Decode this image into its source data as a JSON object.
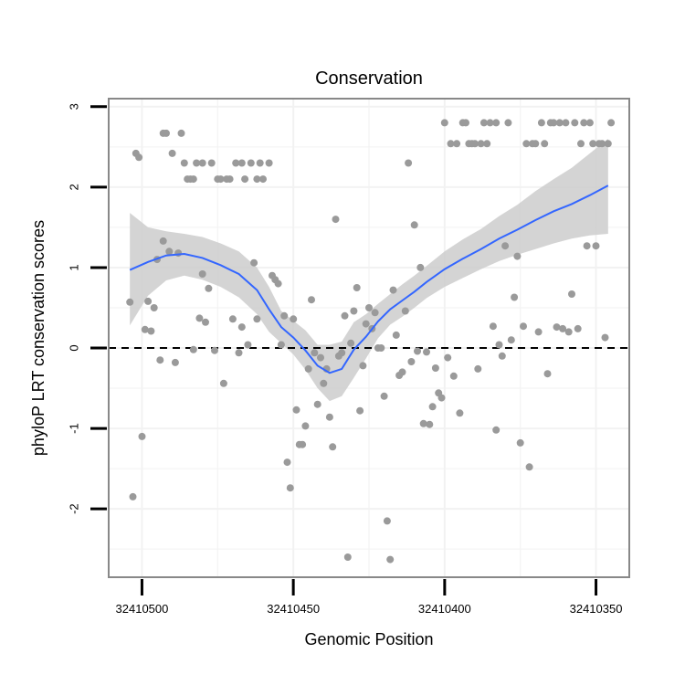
{
  "chart_data": {
    "type": "scatter",
    "title": "Conservation",
    "xlabel": "Genomic Position",
    "ylabel": "phyloP LRT conservation scores",
    "x_reversed": true,
    "xlim": [
      32410511,
      32410339
    ],
    "ylim": [
      -2.85,
      3.1
    ],
    "x_ticks": [
      32410500,
      32410450,
      32410400,
      32410350
    ],
    "x_tick_labels": [
      "32410500",
      "32410450",
      "32410400",
      "32410350"
    ],
    "y_ticks": [
      -2,
      -1,
      0,
      1,
      2,
      3
    ],
    "y_tick_labels": [
      "-2",
      "-1",
      "0",
      "1",
      "2",
      "3"
    ],
    "grid": true,
    "reference_line": {
      "y": 0,
      "style": "dashed"
    },
    "colors": {
      "points": "#9a9a9a",
      "smooth_line": "#3366ff",
      "confidence_band": "#cccccc",
      "panel_border": "#888888",
      "grid": "#f2f2f2"
    },
    "points": [
      {
        "x": 32410504,
        "y": 0.57
      },
      {
        "x": 32410503,
        "y": -1.85
      },
      {
        "x": 32410502,
        "y": 2.42
      },
      {
        "x": 32410501,
        "y": 2.37
      },
      {
        "x": 32410500,
        "y": -1.1
      },
      {
        "x": 32410499,
        "y": 0.23
      },
      {
        "x": 32410498,
        "y": 0.58
      },
      {
        "x": 32410497,
        "y": 0.21
      },
      {
        "x": 32410496,
        "y": 0.5
      },
      {
        "x": 32410495,
        "y": 1.1
      },
      {
        "x": 32410494,
        "y": -0.15
      },
      {
        "x": 32410493,
        "y": 2.67
      },
      {
        "x": 32410493,
        "y": 1.33
      },
      {
        "x": 32410492,
        "y": 2.67
      },
      {
        "x": 32410491,
        "y": 1.2
      },
      {
        "x": 32410490,
        "y": 2.42
      },
      {
        "x": 32410489,
        "y": -0.18
      },
      {
        "x": 32410488,
        "y": 1.18
      },
      {
        "x": 32410487,
        "y": 2.67
      },
      {
        "x": 32410486,
        "y": 2.3
      },
      {
        "x": 32410485,
        "y": 2.1
      },
      {
        "x": 32410484,
        "y": 2.1
      },
      {
        "x": 32410483,
        "y": -0.02
      },
      {
        "x": 32410483,
        "y": 2.1
      },
      {
        "x": 32410482,
        "y": 2.3
      },
      {
        "x": 32410481,
        "y": 0.37
      },
      {
        "x": 32410480,
        "y": 0.92
      },
      {
        "x": 32410480,
        "y": 2.3
      },
      {
        "x": 32410479,
        "y": 0.32
      },
      {
        "x": 32410478,
        "y": 0.74
      },
      {
        "x": 32410477,
        "y": 2.3
      },
      {
        "x": 32410476,
        "y": -0.03
      },
      {
        "x": 32410475,
        "y": 2.1
      },
      {
        "x": 32410474,
        "y": 2.1
      },
      {
        "x": 32410473,
        "y": -0.44
      },
      {
        "x": 32410472,
        "y": 2.1
      },
      {
        "x": 32410471,
        "y": 2.1
      },
      {
        "x": 32410470,
        "y": 0.36
      },
      {
        "x": 32410469,
        "y": 2.3
      },
      {
        "x": 32410468,
        "y": -0.06
      },
      {
        "x": 32410467,
        "y": 2.3
      },
      {
        "x": 32410467,
        "y": 0.26
      },
      {
        "x": 32410466,
        "y": 2.1
      },
      {
        "x": 32410465,
        "y": 0.04
      },
      {
        "x": 32410464,
        "y": 2.3
      },
      {
        "x": 32410463,
        "y": 1.06
      },
      {
        "x": 32410462,
        "y": 2.1
      },
      {
        "x": 32410462,
        "y": 0.36
      },
      {
        "x": 32410461,
        "y": 2.3
      },
      {
        "x": 32410460,
        "y": 2.1
      },
      {
        "x": 32410458,
        "y": 2.3
      },
      {
        "x": 32410457,
        "y": 0.9
      },
      {
        "x": 32410456,
        "y": 0.85
      },
      {
        "x": 32410455,
        "y": 0.8
      },
      {
        "x": 32410454,
        "y": 0.04
      },
      {
        "x": 32410453,
        "y": 0.4
      },
      {
        "x": 32410452,
        "y": -1.42
      },
      {
        "x": 32410451,
        "y": -1.74
      },
      {
        "x": 32410450,
        "y": 0.36
      },
      {
        "x": 32410449,
        "y": -0.77
      },
      {
        "x": 32410448,
        "y": -1.2
      },
      {
        "x": 32410447,
        "y": -1.2
      },
      {
        "x": 32410446,
        "y": -0.97
      },
      {
        "x": 32410445,
        "y": -0.26
      },
      {
        "x": 32410444,
        "y": 0.6
      },
      {
        "x": 32410443,
        "y": -0.06
      },
      {
        "x": 32410442,
        "y": -0.7
      },
      {
        "x": 32410441,
        "y": -0.12
      },
      {
        "x": 32410440,
        "y": -0.44
      },
      {
        "x": 32410439,
        "y": -0.26
      },
      {
        "x": 32410438,
        "y": -0.86
      },
      {
        "x": 32410437,
        "y": -1.23
      },
      {
        "x": 32410436,
        "y": 1.6
      },
      {
        "x": 32410435,
        "y": -0.1
      },
      {
        "x": 32410434,
        "y": -0.06
      },
      {
        "x": 32410433,
        "y": 0.4
      },
      {
        "x": 32410432,
        "y": -2.6
      },
      {
        "x": 32410431,
        "y": 0.06
      },
      {
        "x": 32410430,
        "y": 0.46
      },
      {
        "x": 32410429,
        "y": 0.75
      },
      {
        "x": 32410428,
        "y": -0.78
      },
      {
        "x": 32410427,
        "y": -0.22
      },
      {
        "x": 32410426,
        "y": 0.3
      },
      {
        "x": 32410425,
        "y": 0.5
      },
      {
        "x": 32410424,
        "y": 0.24
      },
      {
        "x": 32410423,
        "y": 0.44
      },
      {
        "x": 32410422,
        "y": 0
      },
      {
        "x": 32410421,
        "y": 0
      },
      {
        "x": 32410420,
        "y": -0.6
      },
      {
        "x": 32410419,
        "y": -2.15
      },
      {
        "x": 32410418,
        "y": -2.63
      },
      {
        "x": 32410417,
        "y": 0.72
      },
      {
        "x": 32410416,
        "y": 0.16
      },
      {
        "x": 32410415,
        "y": -0.34
      },
      {
        "x": 32410414,
        "y": -0.3
      },
      {
        "x": 32410413,
        "y": 0.46
      },
      {
        "x": 32410412,
        "y": 2.3
      },
      {
        "x": 32410411,
        "y": -0.17
      },
      {
        "x": 32410410,
        "y": 1.53
      },
      {
        "x": 32410409,
        "y": -0.04
      },
      {
        "x": 32410408,
        "y": 1
      },
      {
        "x": 32410407,
        "y": -0.94
      },
      {
        "x": 32410406,
        "y": -0.05
      },
      {
        "x": 32410405,
        "y": -0.95
      },
      {
        "x": 32410404,
        "y": -0.73
      },
      {
        "x": 32410403,
        "y": -0.25
      },
      {
        "x": 32410402,
        "y": -0.56
      },
      {
        "x": 32410401,
        "y": -0.62
      },
      {
        "x": 32410400,
        "y": 2.8
      },
      {
        "x": 32410399,
        "y": -0.12
      },
      {
        "x": 32410398,
        "y": 2.54
      },
      {
        "x": 32410397,
        "y": -0.35
      },
      {
        "x": 32410396,
        "y": 2.54
      },
      {
        "x": 32410395,
        "y": -0.81
      },
      {
        "x": 32410394,
        "y": 2.8
      },
      {
        "x": 32410393,
        "y": 2.8
      },
      {
        "x": 32410392,
        "y": 2.54
      },
      {
        "x": 32410391,
        "y": 2.54
      },
      {
        "x": 32410390,
        "y": 2.54
      },
      {
        "x": 32410389,
        "y": -0.26
      },
      {
        "x": 32410388,
        "y": 2.54
      },
      {
        "x": 32410387,
        "y": 2.8
      },
      {
        "x": 32410386,
        "y": 2.54
      },
      {
        "x": 32410385,
        "y": 2.8
      },
      {
        "x": 32410384,
        "y": 0.27
      },
      {
        "x": 32410383,
        "y": -1.02
      },
      {
        "x": 32410383,
        "y": 2.8
      },
      {
        "x": 32410382,
        "y": 0.04
      },
      {
        "x": 32410381,
        "y": -0.1
      },
      {
        "x": 32410380,
        "y": 1.27
      },
      {
        "x": 32410379,
        "y": 2.8
      },
      {
        "x": 32410378,
        "y": 0.1
      },
      {
        "x": 32410377,
        "y": 0.63
      },
      {
        "x": 32410376,
        "y": 1.14
      },
      {
        "x": 32410375,
        "y": -1.18
      },
      {
        "x": 32410374,
        "y": 0.27
      },
      {
        "x": 32410373,
        "y": 2.54
      },
      {
        "x": 32410372,
        "y": -1.48
      },
      {
        "x": 32410371,
        "y": 2.54
      },
      {
        "x": 32410370,
        "y": 2.54
      },
      {
        "x": 32410369,
        "y": 0.2
      },
      {
        "x": 32410368,
        "y": 2.8
      },
      {
        "x": 32410367,
        "y": 2.54
      },
      {
        "x": 32410366,
        "y": -0.32
      },
      {
        "x": 32410365,
        "y": 2.8
      },
      {
        "x": 32410364,
        "y": 2.8
      },
      {
        "x": 32410363,
        "y": 0.26
      },
      {
        "x": 32410362,
        "y": 2.8
      },
      {
        "x": 32410361,
        "y": 0.24
      },
      {
        "x": 32410360,
        "y": 2.8
      },
      {
        "x": 32410359,
        "y": 0.2
      },
      {
        "x": 32410358,
        "y": 0.67
      },
      {
        "x": 32410357,
        "y": 2.8
      },
      {
        "x": 32410356,
        "y": 0.24
      },
      {
        "x": 32410355,
        "y": 2.54
      },
      {
        "x": 32410354,
        "y": 2.8
      },
      {
        "x": 32410353,
        "y": 1.27
      },
      {
        "x": 32410352,
        "y": 2.8
      },
      {
        "x": 32410351,
        "y": 2.54
      },
      {
        "x": 32410350,
        "y": 1.27
      },
      {
        "x": 32410349,
        "y": 2.54
      },
      {
        "x": 32410348,
        "y": 2.54
      },
      {
        "x": 32410347,
        "y": 0.13
      },
      {
        "x": 32410346,
        "y": 2.54
      },
      {
        "x": 32410345,
        "y": 2.8
      }
    ],
    "smooth": {
      "x": [
        32410504,
        32410498,
        32410492,
        32410486,
        32410480,
        32410474,
        32410468,
        32410462,
        32410458,
        32410454,
        32410450,
        32410446,
        32410442,
        32410438,
        32410434,
        32410430,
        32410426,
        32410422,
        32410418,
        32410414,
        32410410,
        32410406,
        32410400,
        32410394,
        32410388,
        32410382,
        32410376,
        32410370,
        32410364,
        32410358,
        32410352,
        32410346
      ],
      "y": [
        0.97,
        1.07,
        1.15,
        1.17,
        1.12,
        1.03,
        0.92,
        0.72,
        0.48,
        0.26,
        0.13,
        -0.03,
        -0.22,
        -0.31,
        -0.26,
        -0.02,
        0.14,
        0.33,
        0.48,
        0.59,
        0.7,
        0.82,
        0.98,
        1.11,
        1.23,
        1.36,
        1.47,
        1.59,
        1.7,
        1.79,
        1.9,
        2.02
      ],
      "lower": [
        0.28,
        0.65,
        0.84,
        0.9,
        0.85,
        0.76,
        0.63,
        0.42,
        0.2,
        0.06,
        -0.08,
        -0.27,
        -0.5,
        -0.66,
        -0.6,
        -0.37,
        -0.13,
        0.12,
        0.29,
        0.39,
        0.5,
        0.62,
        0.76,
        0.87,
        0.98,
        1.08,
        1.16,
        1.23,
        1.3,
        1.36,
        1.4,
        1.42
      ],
      "upper": [
        1.68,
        1.5,
        1.45,
        1.42,
        1.38,
        1.3,
        1.2,
        1.0,
        0.76,
        0.46,
        0.34,
        0.22,
        0.04,
        0.04,
        0.08,
        0.32,
        0.42,
        0.55,
        0.67,
        0.79,
        0.9,
        1.02,
        1.2,
        1.35,
        1.48,
        1.64,
        1.78,
        1.95,
        2.1,
        2.24,
        2.42,
        2.6
      ]
    }
  }
}
